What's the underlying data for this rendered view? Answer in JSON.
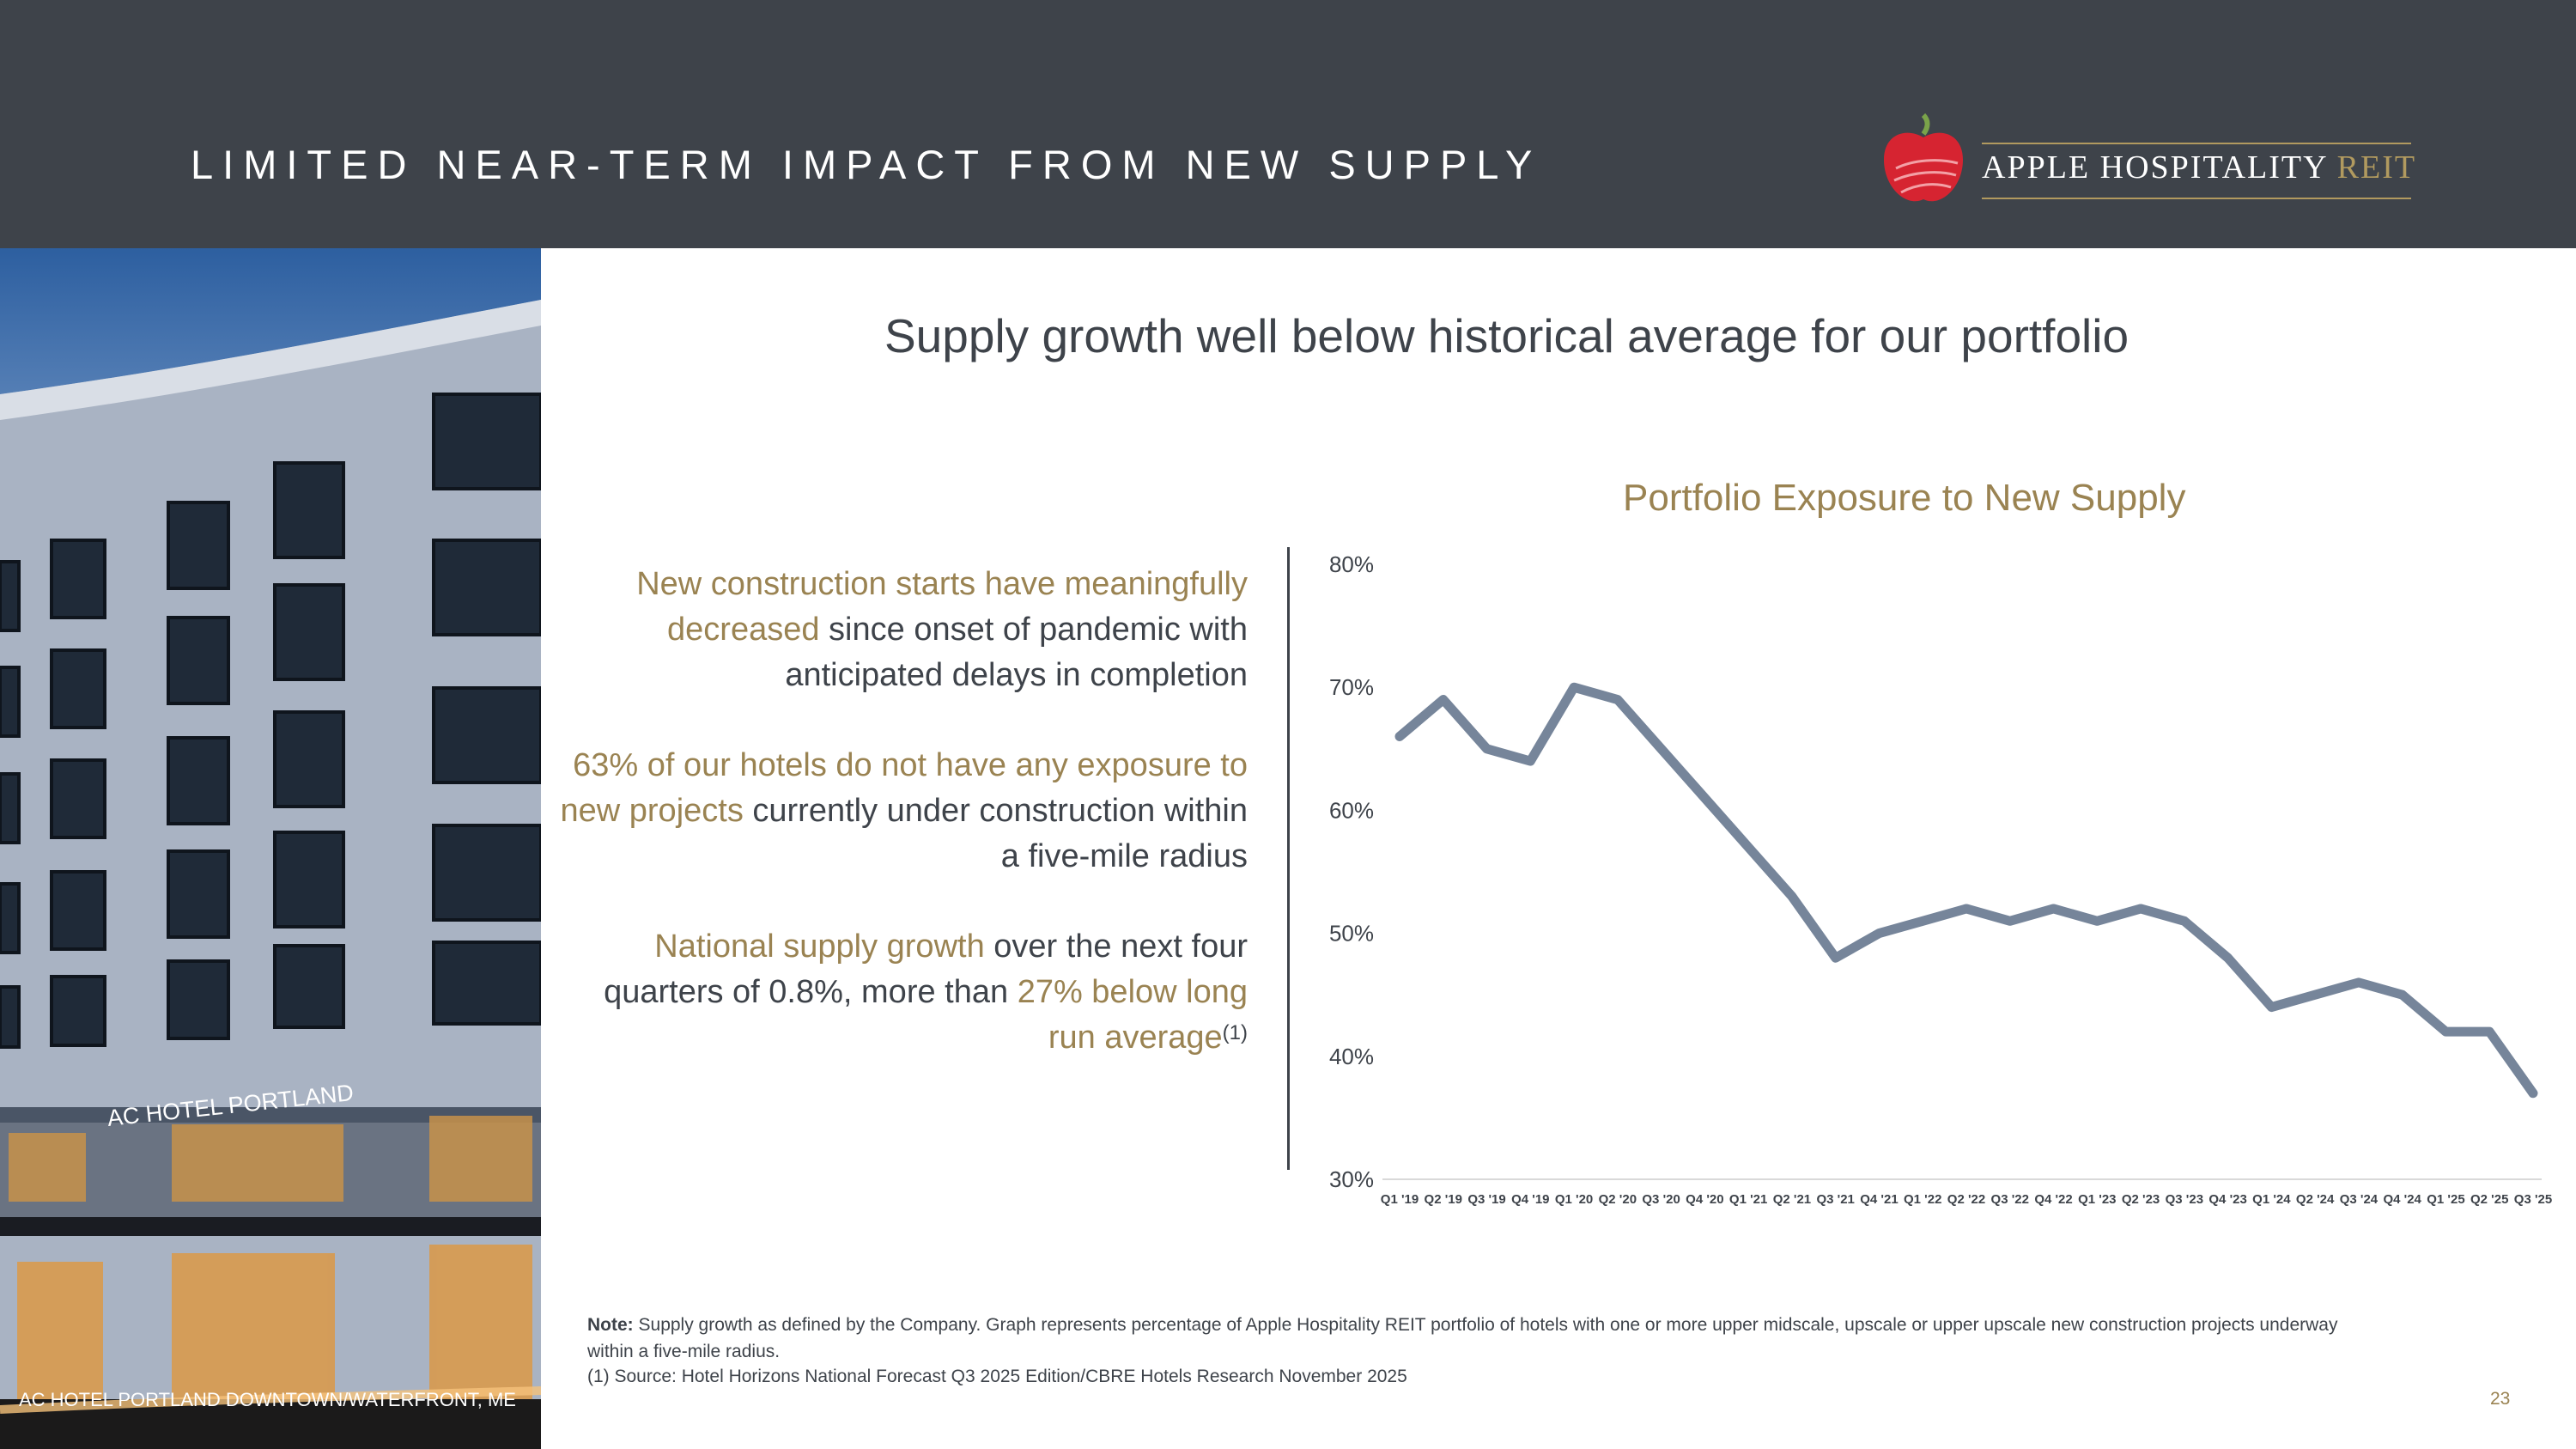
{
  "header": {
    "title": "LIMITED NEAR-TERM IMPACT FROM NEW SUPPLY"
  },
  "logo": {
    "name": "APPLE HOSPITALITY",
    "suffix": "REIT"
  },
  "photo": {
    "sign_text": "AC HOTEL PORTLAND",
    "caption": "AC HOTEL PORTLAND DOWNTOWN/WATERFRONT, ME"
  },
  "subtitle": "Supply growth well below historical average for our portfolio",
  "bullets": [
    {
      "highlight": "New construction starts have meaningfully decreased",
      "text": " since onset of pandemic with anticipated delays in completion",
      "sup": ""
    },
    {
      "highlight": "63% of our hotels do not have any exposure to new projects",
      "text": " currently under construction within a five-mile radius",
      "sup": ""
    },
    {
      "text_before": "National supply growth",
      "text": " over the next four quarters of 0.8%, more than ",
      "highlight": "27% below long run average",
      "sup": "(1)"
    }
  ],
  "chart_data": {
    "type": "line",
    "title": "Portfolio Exposure to New Supply",
    "xlabel": "",
    "ylabel": "",
    "categories": [
      "Q1 '19",
      "Q2 '19",
      "Q3 '19",
      "Q4 '19",
      "Q1 '20",
      "Q2 '20",
      "Q3 '20",
      "Q4 '20",
      "Q1 '21",
      "Q2 '21",
      "Q3 '21",
      "Q4 '21",
      "Q1 '22",
      "Q2 '22",
      "Q3 '22",
      "Q4 '22",
      "Q1 '23",
      "Q2 '23",
      "Q3 '23",
      "Q4 '23",
      "Q1 '24",
      "Q2 '24",
      "Q3 '24",
      "Q4 '24",
      "Q1 '25",
      "Q2 '25",
      "Q3 '25"
    ],
    "series": [
      {
        "name": "",
        "values": [
          66,
          69,
          65,
          64,
          70,
          69,
          65,
          61,
          57,
          53,
          48,
          50,
          51,
          52,
          51,
          52,
          51,
          52,
          51,
          48,
          44,
          45,
          46,
          45,
          42,
          42,
          37
        ]
      }
    ],
    "ylim": [
      30,
      80
    ],
    "yticks": [
      30,
      40,
      50,
      60,
      70,
      80
    ],
    "ytick_labels": [
      "30%",
      "40%",
      "50%",
      "60%",
      "70%",
      "80%"
    ],
    "grid": false,
    "legend": "none",
    "line_color": "#76859a"
  },
  "note": {
    "label": "Note:",
    "text": " Supply growth as defined by the Company. Graph represents percentage of Apple Hospitality REIT portfolio of hotels with one or more upper midscale, upscale or upper upscale new construction projects underway within a five-mile radius."
  },
  "source": "(1) Source: Hotel Horizons National Forecast Q3 2025 Edition/CBRE Hotels Research November 2025",
  "page_number": "23",
  "colors": {
    "header_bg": "#3e434a",
    "gold": "#9a8352",
    "text": "#3e434a",
    "logo_red": "#d62431"
  }
}
